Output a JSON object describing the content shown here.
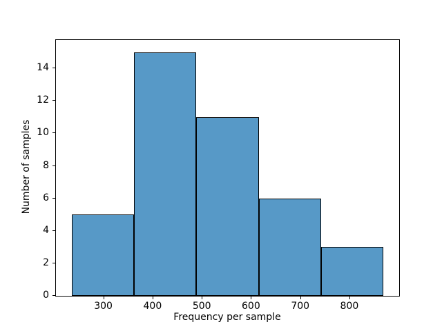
{
  "chart_data": {
    "type": "bar",
    "subtype": "histogram",
    "title": "",
    "xlabel": "Frequency per sample",
    "ylabel": "Number of samples",
    "bin_edges": [
      234,
      360.8,
      487.6,
      614.4,
      741.2,
      868
    ],
    "counts": [
      5,
      15,
      11,
      6,
      3
    ],
    "x_ticks": [
      300,
      400,
      500,
      600,
      700,
      800
    ],
    "y_ticks": [
      0,
      2,
      4,
      6,
      8,
      10,
      12,
      14
    ],
    "xlim": [
      202.3,
      899.7
    ],
    "ylim": [
      0,
      15.75
    ],
    "grid": false,
    "legend": null,
    "bar_fill_color": "#5799c7",
    "bar_edge_color": "#000000",
    "axis_color": "#000000",
    "background_color": "#ffffff"
  }
}
